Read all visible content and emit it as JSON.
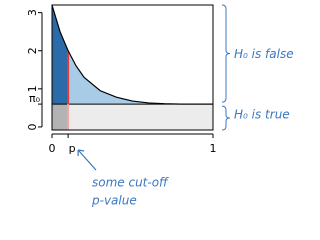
{
  "chart_data": {
    "type": "density",
    "x": [
      0,
      0.05,
      0.1,
      0.15,
      0.2,
      0.3,
      0.4,
      0.5,
      0.6,
      0.7,
      0.8,
      0.9,
      1
    ],
    "values": [
      3.2,
      2.5,
      2.0,
      1.6,
      1.3,
      0.95,
      0.78,
      0.68,
      0.63,
      0.61,
      0.6,
      0.6,
      0.6
    ],
    "xlim": [
      0,
      1
    ],
    "ylim": [
      -0.08,
      3.2
    ],
    "xticks": [
      0,
      {
        "value": 0.1,
        "label": "p"
      },
      1
    ],
    "yticks": [
      0,
      1,
      2,
      3,
      {
        "value": 0.6,
        "label": "π₀"
      }
    ],
    "colors": {
      "curve": "#000000",
      "alt_left": "#2b6ca8",
      "alt_right": "#a8cbe6",
      "null_left": "#b3b3b3",
      "null_right": "#ececec",
      "cutoff": "#e8393a",
      "annotation": "#3a78c2"
    },
    "annotations": [
      "H₀ is false",
      "H₀ is true"
    ],
    "cutoff_note": [
      "some cut-off",
      "p-value"
    ]
  }
}
